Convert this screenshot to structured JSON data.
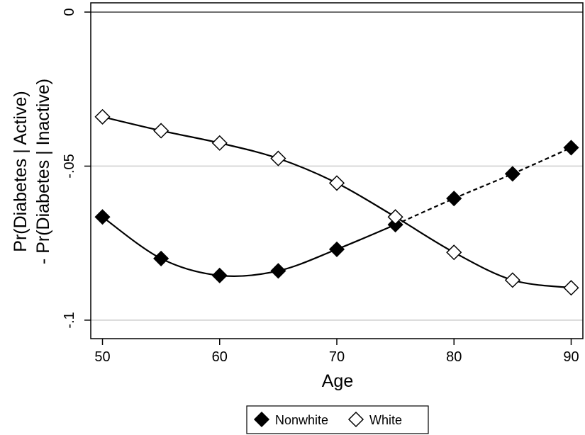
{
  "chart_data": {
    "type": "line",
    "xlabel": "Age",
    "ylabel_line1": "Pr(Diabetes | Active)",
    "ylabel_line2": "- Pr(Diabetes | Inactive)",
    "xlim": [
      49,
      91
    ],
    "ylim": [
      -0.106,
      0.003
    ],
    "x_ticks": [
      50,
      60,
      70,
      80,
      90
    ],
    "x_tick_labels": [
      "50",
      "60",
      "70",
      "80",
      "90"
    ],
    "y_ticks": [
      0,
      -0.05,
      -0.1
    ],
    "y_tick_labels": [
      "0",
      "-.05",
      "-.1"
    ],
    "grid": true,
    "legend_position": "bottom-center",
    "series": [
      {
        "name": "Nonwhite",
        "marker": "filled-diamond",
        "color": "#000000",
        "x": [
          50,
          55,
          60,
          65,
          70,
          75,
          80,
          85,
          90
        ],
        "values": [
          -0.0665,
          -0.08,
          -0.0855,
          -0.084,
          -0.077,
          -0.069,
          -0.0605,
          -0.0525,
          -0.044
        ],
        "solid_until_x": 75
      },
      {
        "name": "White",
        "marker": "hollow-diamond",
        "color": "#000000",
        "x": [
          50,
          55,
          60,
          65,
          70,
          75,
          80,
          85,
          90
        ],
        "values": [
          -0.034,
          -0.0385,
          -0.0425,
          -0.0475,
          -0.0555,
          -0.0665,
          -0.078,
          -0.087,
          -0.0895
        ]
      }
    ]
  }
}
